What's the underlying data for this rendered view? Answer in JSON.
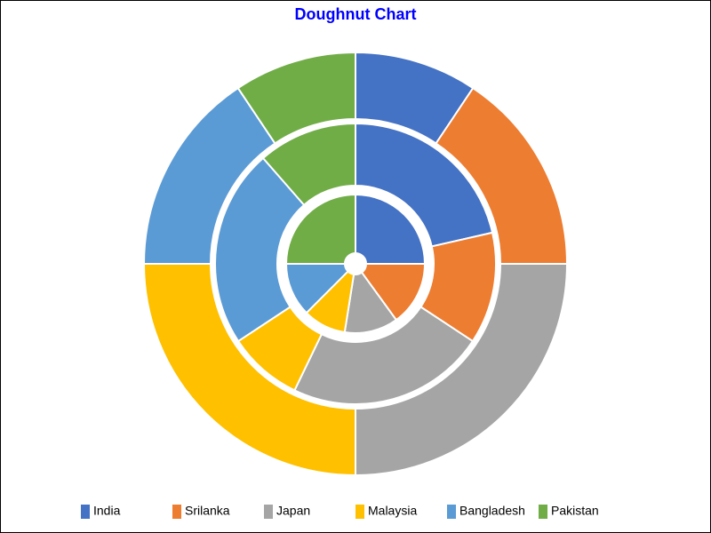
{
  "chart_data": {
    "type": "doughnut",
    "title": "Doughnut Chart",
    "categories": [
      "India",
      "Srilanka",
      "Japan",
      "Malaysia",
      "Bangladesh",
      "Pakistan"
    ],
    "colors": [
      "#4472c4",
      "#ed7d31",
      "#a5a5a5",
      "#ffc000",
      "#5b9bd5",
      "#70ad47"
    ],
    "series": [
      {
        "values": [
          20,
          12,
          10,
          8,
          10,
          20
        ]
      },
      {
        "values": [
          15,
          9,
          16,
          6,
          16,
          8
        ]
      },
      {
        "values": [
          6,
          10,
          16,
          16,
          10,
          6
        ]
      }
    ],
    "legend": "bottom"
  }
}
